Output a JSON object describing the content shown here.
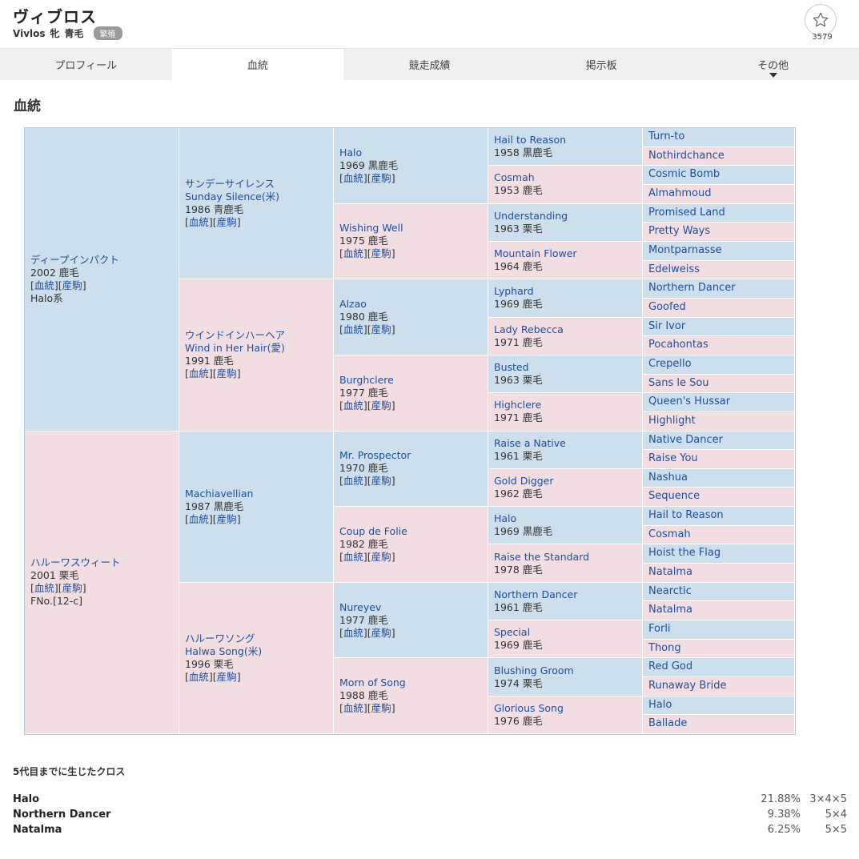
{
  "horse": {
    "name": "ヴィブロス",
    "name_en": "Vivlos",
    "sex": "牝",
    "color": "青毛",
    "status": "繁殖",
    "favorite_count": "3579"
  },
  "tabs": [
    {
      "label": "プロフィール"
    },
    {
      "label": "血統"
    },
    {
      "label": "競走成績"
    },
    {
      "label": "掲示板"
    },
    {
      "label": "その他"
    }
  ],
  "section_title": "血統",
  "link_labels": {
    "pedigree": "血統",
    "progeny": "産駒"
  },
  "pedigree": {
    "gen1": [
      {
        "name": "ディープインパクト",
        "year": "2002 鹿毛",
        "extra": "Halo系"
      },
      {
        "name": "ハルーワスウィート",
        "year": "2001 栗毛",
        "extra": "FNo.[12-c]"
      }
    ],
    "gen2": [
      {
        "name": "サンデーサイレンス",
        "name2": "Sunday Silence(米)",
        "year": "1986 青鹿毛"
      },
      {
        "name": "ウインドインハーヘア",
        "name2": "Wind in Her Hair(愛)",
        "year": "1991 鹿毛"
      },
      {
        "name": "Machiavellian",
        "name2": "",
        "year": "1987 黒鹿毛"
      },
      {
        "name": "ハルーワソング",
        "name2": "Halwa Song(米)",
        "year": "1996 栗毛"
      }
    ],
    "gen3": [
      {
        "name": "Halo",
        "year": "1969 黒鹿毛"
      },
      {
        "name": "Wishing Well",
        "year": "1975 鹿毛"
      },
      {
        "name": "Alzao",
        "year": "1980 鹿毛"
      },
      {
        "name": "Burghclere",
        "year": "1977 鹿毛"
      },
      {
        "name": "Mr. Prospector",
        "year": "1970 鹿毛"
      },
      {
        "name": "Coup de Folie",
        "year": "1982 鹿毛"
      },
      {
        "name": "Nureyev",
        "year": "1977 鹿毛"
      },
      {
        "name": "Morn of Song",
        "year": "1988 鹿毛"
      }
    ],
    "gen4": [
      {
        "name": "Hail to Reason",
        "year": "1958 黒鹿毛"
      },
      {
        "name": "Cosmah",
        "year": "1953 鹿毛"
      },
      {
        "name": "Understanding",
        "year": "1963 栗毛"
      },
      {
        "name": "Mountain Flower",
        "year": "1964 鹿毛"
      },
      {
        "name": "Lyphard",
        "year": "1969 鹿毛"
      },
      {
        "name": "Lady Rebecca",
        "year": "1971 鹿毛"
      },
      {
        "name": "Busted",
        "year": "1963 栗毛"
      },
      {
        "name": "Highclere",
        "year": "1971 鹿毛"
      },
      {
        "name": "Raise a Native",
        "year": "1961 栗毛"
      },
      {
        "name": "Gold Digger",
        "year": "1962 鹿毛"
      },
      {
        "name": "Halo",
        "year": "1969 黒鹿毛"
      },
      {
        "name": "Raise the Standard",
        "year": "1978 鹿毛"
      },
      {
        "name": "Northern Dancer",
        "year": "1961 鹿毛"
      },
      {
        "name": "Special",
        "year": "1969 鹿毛"
      },
      {
        "name": "Blushing Groom",
        "year": "1974 栗毛"
      },
      {
        "name": "Glorious Song",
        "year": "1976 鹿毛"
      }
    ],
    "gen5": [
      "Turn-to",
      "Nothirdchance",
      "Cosmic Bomb",
      "Almahmoud",
      "Promised Land",
      "Pretty Ways",
      "Montparnasse",
      "Edelweiss",
      "Northern Dancer",
      "Goofed",
      "Sir Ivor",
      "Pocahontas",
      "Crepello",
      "Sans le Sou",
      "Queen's Hussar",
      "Highlight",
      "Native Dancer",
      "Raise You",
      "Nashua",
      "Sequence",
      "Hail to Reason",
      "Cosmah",
      "Hoist the Flag",
      "Natalma",
      "Nearctic",
      "Natalma",
      "Forli",
      "Thong",
      "Red God",
      "Runaway Bride",
      "Halo",
      "Ballade"
    ]
  },
  "crosses": {
    "title": "5代目までに生じたクロス",
    "rows": [
      {
        "name": "Halo",
        "percent": "21.88%",
        "gens": "3×4×5"
      },
      {
        "name": "Northern Dancer",
        "percent": "9.38%",
        "gens": "5×4"
      },
      {
        "name": "Natalma",
        "percent": "6.25%",
        "gens": "5×5"
      }
    ]
  },
  "colors": {
    "male_bg": "#cddeec",
    "female_bg": "#f2dde2",
    "link": "#1f4fa0"
  }
}
